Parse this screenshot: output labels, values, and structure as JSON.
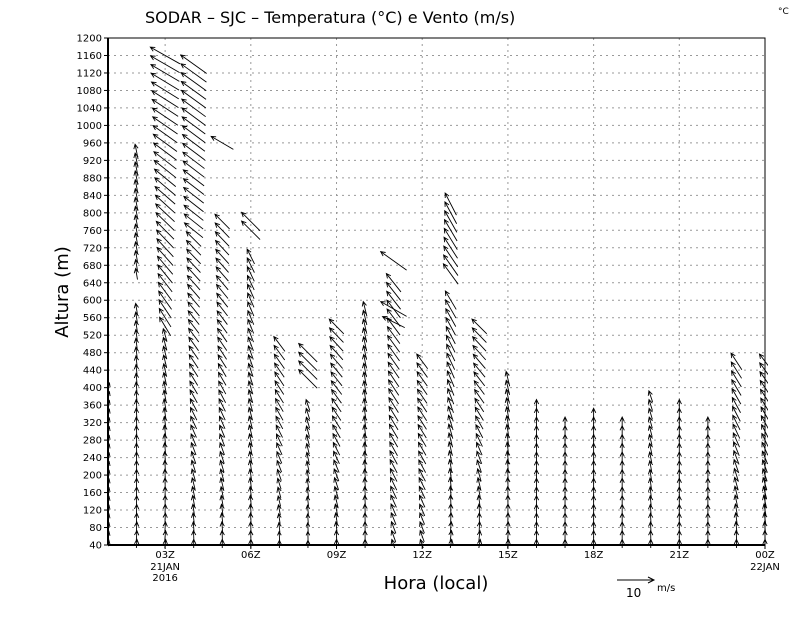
{
  "chart_data": {
    "type": "vector",
    "title": "SODAR – SJC – Temperatura (°C) e Vento (m/s)",
    "corner_label": "°C",
    "xlabel": "Hora (local)",
    "ylabel": "Altura (m)",
    "xlim_hours": [
      1,
      24
    ],
    "ylim": [
      40,
      1200
    ],
    "y_ticks": [
      40,
      80,
      120,
      160,
      200,
      240,
      280,
      320,
      360,
      400,
      440,
      480,
      520,
      560,
      600,
      640,
      680,
      720,
      760,
      800,
      840,
      880,
      920,
      960,
      1000,
      1040,
      1080,
      1120,
      1160,
      1200
    ],
    "x_ticks": [
      {
        "hour": 3,
        "label": "03Z",
        "sub1": "21JAN",
        "sub2": "2016"
      },
      {
        "hour": 6,
        "label": "06Z"
      },
      {
        "hour": 9,
        "label": "09Z"
      },
      {
        "hour": 12,
        "label": "12Z"
      },
      {
        "hour": 15,
        "label": "15Z"
      },
      {
        "hour": 18,
        "label": "18Z"
      },
      {
        "hour": 21,
        "label": "21Z"
      },
      {
        "hour": 24,
        "label": "00Z",
        "sub1": "22JAN"
      }
    ],
    "grid": true,
    "level_step_m": 20,
    "reference_vector": {
      "value": 10,
      "label": "10",
      "unit": "m/s"
    },
    "columns": [
      {
        "hour": 1,
        "segments": [
          [
            40,
            400,
            0.5,
            2.5,
            0.8,
            2.5
          ]
        ]
      },
      {
        "hour": 2,
        "segments": [
          [
            40,
            590,
            0.2,
            3,
            -0.5,
            3
          ],
          [
            660,
            940,
            -0.5,
            3,
            -0.8,
            4
          ]
        ]
      },
      {
        "hour": 3,
        "segments": [
          [
            40,
            520,
            0.3,
            3,
            -1,
            3.5
          ],
          [
            540,
            1160,
            -3,
            5,
            -8,
            4.5
          ]
        ]
      },
      {
        "hour": 4,
        "segments": [
          [
            40,
            740,
            0,
            3,
            -4,
            4
          ],
          [
            760,
            1140,
            -5,
            4,
            -7,
            5
          ]
        ]
      },
      {
        "hour": 5,
        "segments": [
          [
            40,
            790,
            0,
            3,
            -4,
            4
          ],
          [
            960,
            960,
            -6,
            3.5,
            -6,
            3.5
          ]
        ]
      },
      {
        "hour": 6,
        "segments": [
          [
            40,
            700,
            0,
            3,
            -2,
            4
          ],
          [
            760,
            780,
            -5,
            5,
            -5,
            5
          ]
        ]
      },
      {
        "hour": 7,
        "segments": [
          [
            40,
            500,
            0,
            2.5,
            -3,
            4
          ]
        ]
      },
      {
        "hour": 8,
        "segments": [
          [
            40,
            360,
            0,
            2.5,
            -1,
            3
          ],
          [
            420,
            480,
            -5,
            5,
            -5,
            5
          ]
        ]
      },
      {
        "hour": 9,
        "segments": [
          [
            40,
            550,
            0,
            3,
            -4,
            4
          ]
        ]
      },
      {
        "hour": 10,
        "segments": [
          [
            40,
            590,
            0,
            3,
            -1,
            4
          ]
        ]
      },
      {
        "hour": 11,
        "segments": [
          [
            40,
            650,
            -1,
            3,
            -4,
            5
          ],
          [
            550,
            550,
            -6,
            3,
            -6,
            3
          ],
          [
            580,
            580,
            -7,
            4,
            -7,
            4
          ],
          [
            690,
            690,
            -7,
            5,
            -7,
            5
          ]
        ]
      },
      {
        "hour": 12,
        "segments": [
          [
            40,
            470,
            -1,
            3,
            -3,
            4
          ]
        ]
      },
      {
        "hour": 13,
        "segments": [
          [
            40,
            610,
            0.5,
            3,
            -3,
            5
          ],
          [
            660,
            830,
            -4,
            5.5,
            -3,
            6
          ]
        ]
      },
      {
        "hour": 14,
        "segments": [
          [
            40,
            540,
            0.5,
            3,
            -4,
            4
          ]
        ]
      },
      {
        "hour": 15,
        "segments": [
          [
            40,
            430,
            0.3,
            3,
            -1,
            4
          ]
        ]
      },
      {
        "hour": 16,
        "segments": [
          [
            40,
            370,
            0,
            3,
            0,
            3
          ]
        ]
      },
      {
        "hour": 17,
        "segments": [
          [
            40,
            330,
            0,
            3,
            0,
            3
          ]
        ]
      },
      {
        "hour": 18,
        "segments": [
          [
            40,
            340,
            0,
            3,
            0,
            3
          ]
        ]
      },
      {
        "hour": 19,
        "segments": [
          [
            40,
            330,
            0,
            3,
            0,
            3
          ]
        ]
      },
      {
        "hour": 20,
        "segments": [
          [
            40,
            380,
            0,
            3,
            -1,
            3
          ]
        ]
      },
      {
        "hour": 21,
        "segments": [
          [
            40,
            370,
            0,
            3,
            0,
            3
          ]
        ]
      },
      {
        "hour": 22,
        "segments": [
          [
            40,
            330,
            0,
            3,
            0,
            3
          ]
        ]
      },
      {
        "hour": 23,
        "segments": [
          [
            40,
            470,
            0,
            3,
            -3,
            4.5
          ]
        ]
      },
      {
        "hour": 24,
        "segments": [
          [
            40,
            460,
            0,
            3,
            -3,
            4
          ]
        ]
      }
    ]
  }
}
